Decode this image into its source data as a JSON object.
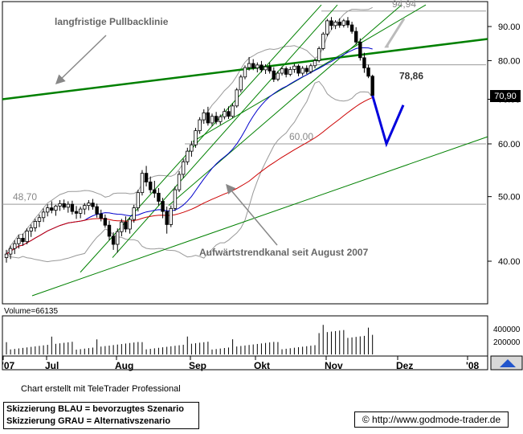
{
  "chart_data": {
    "type": "candlestick",
    "title": "",
    "xlabel": "",
    "ylabel": "",
    "ylim": [
      35,
      98
    ],
    "y_ticks": [
      40,
      50,
      60,
      70,
      80,
      90
    ],
    "x_ticks": [
      "'07",
      "Jul",
      "Aug",
      "Sep",
      "Okt",
      "Nov",
      "Dez",
      "'08"
    ],
    "current_price": "70,90",
    "price_levels": [
      {
        "label": "94,94",
        "value": 94.94
      },
      {
        "label": "78,86",
        "value": 78.86
      },
      {
        "label": "60,00",
        "value": 60.0
      },
      {
        "label": "48,70",
        "value": 48.7
      }
    ],
    "annotations": [
      {
        "text": "langfristige Pullbacklinie"
      },
      {
        "text": "Aufwärtstrendkanal seit August 2007"
      }
    ],
    "volume": {
      "label": "Volume=66135",
      "ticks": [
        "400000",
        "200000"
      ]
    },
    "colors": {
      "candle_body": "#000000",
      "trend_line": "#008000",
      "pullback_line": "#008000",
      "short_ma": "#0000cc",
      "long_ma": "#cc0000",
      "bollinger": "#999999",
      "scenario_blue": "#0000dd",
      "scenario_grey": "#bbbbbb"
    },
    "ohlc": [
      [
        40.5,
        41.6,
        39.8,
        41.0
      ],
      [
        41.0,
        42.2,
        40.3,
        41.8
      ],
      [
        41.8,
        43.0,
        41.0,
        42.5
      ],
      [
        42.5,
        43.8,
        41.8,
        43.3
      ],
      [
        43.3,
        44.0,
        42.2,
        42.8
      ],
      [
        42.8,
        44.8,
        42.4,
        44.4
      ],
      [
        44.4,
        45.4,
        43.5,
        44.9
      ],
      [
        44.9,
        46.3,
        44.3,
        45.9
      ],
      [
        45.9,
        47.0,
        45.0,
        46.5
      ],
      [
        46.5,
        48.0,
        45.8,
        47.4
      ],
      [
        47.4,
        48.7,
        46.7,
        48.1
      ],
      [
        48.1,
        49.2,
        47.2,
        47.7
      ],
      [
        47.7,
        48.6,
        46.8,
        48.4
      ],
      [
        48.4,
        49.4,
        47.6,
        48.8
      ],
      [
        48.8,
        49.5,
        47.8,
        48.2
      ],
      [
        48.2,
        49.2,
        47.3,
        48.7
      ],
      [
        48.7,
        49.3,
        47.0,
        47.5
      ],
      [
        47.5,
        48.4,
        46.3,
        47.2
      ],
      [
        47.2,
        48.3,
        46.4,
        47.9
      ],
      [
        47.9,
        48.9,
        47.0,
        48.5
      ],
      [
        48.5,
        49.4,
        47.7,
        48.9
      ],
      [
        48.9,
        49.6,
        47.8,
        48.3
      ],
      [
        48.3,
        48.8,
        46.5,
        47.1
      ],
      [
        47.1,
        47.8,
        45.9,
        46.4
      ],
      [
        46.4,
        47.0,
        44.9,
        45.3
      ],
      [
        45.3,
        46.0,
        43.0,
        43.6
      ],
      [
        43.6,
        44.2,
        41.6,
        42.4
      ],
      [
        42.4,
        44.8,
        41.2,
        44.3
      ],
      [
        44.3,
        46.3,
        43.6,
        45.8
      ],
      [
        45.8,
        46.7,
        44.2,
        44.7
      ],
      [
        44.7,
        46.5,
        44.0,
        46.2
      ],
      [
        46.2,
        48.6,
        45.7,
        48.1
      ],
      [
        48.1,
        51.2,
        47.5,
        50.7
      ],
      [
        50.7,
        54.8,
        50.2,
        54.2
      ],
      [
        54.2,
        55.6,
        51.8,
        52.6
      ],
      [
        52.6,
        53.6,
        50.6,
        51.2
      ],
      [
        51.2,
        52.8,
        49.8,
        50.6
      ],
      [
        50.6,
        51.5,
        48.5,
        49.2
      ],
      [
        49.2,
        49.8,
        46.4,
        47.5
      ],
      [
        47.5,
        48.3,
        44.0,
        45.4
      ],
      [
        45.4,
        48.5,
        45.0,
        48.0
      ],
      [
        48.0,
        51.8,
        47.6,
        51.2
      ],
      [
        51.2,
        54.6,
        50.8,
        54.0
      ],
      [
        54.0,
        57.0,
        53.3,
        56.4
      ],
      [
        56.4,
        59.2,
        55.8,
        58.5
      ],
      [
        58.5,
        60.6,
        57.4,
        59.8
      ],
      [
        59.8,
        63.4,
        59.2,
        62.8
      ],
      [
        62.8,
        65.8,
        62.1,
        65.2
      ],
      [
        65.2,
        67.6,
        64.3,
        66.8
      ],
      [
        66.8,
        68.2,
        63.9,
        64.5
      ],
      [
        64.5,
        66.6,
        63.8,
        66.0
      ],
      [
        66.0,
        67.0,
        64.2,
        64.8
      ],
      [
        64.8,
        66.4,
        64.1,
        65.9
      ],
      [
        65.9,
        67.8,
        65.3,
        67.1
      ],
      [
        67.1,
        68.3,
        65.4,
        66.0
      ],
      [
        66.0,
        69.0,
        65.6,
        68.4
      ],
      [
        68.4,
        72.8,
        68.0,
        72.3
      ],
      [
        72.3,
        76.2,
        71.7,
        75.6
      ],
      [
        75.6,
        78.7,
        75.0,
        78.1
      ],
      [
        78.1,
        81.0,
        77.3,
        79.2
      ],
      [
        79.2,
        80.4,
        77.4,
        78.0
      ],
      [
        78.0,
        79.5,
        76.8,
        78.8
      ],
      [
        78.8,
        79.9,
        76.8,
        77.5
      ],
      [
        77.5,
        79.0,
        76.4,
        78.3
      ],
      [
        78.3,
        79.5,
        76.5,
        77.2
      ],
      [
        77.2,
        78.2,
        74.3,
        75.0
      ],
      [
        75.0,
        77.2,
        74.5,
        76.6
      ],
      [
        76.6,
        78.4,
        76.0,
        77.8
      ],
      [
        77.8,
        78.4,
        75.5,
        76.3
      ],
      [
        76.3,
        78.3,
        75.8,
        77.6
      ],
      [
        77.6,
        79.1,
        76.7,
        78.5
      ],
      [
        78.5,
        79.0,
        75.8,
        76.6
      ],
      [
        76.6,
        78.5,
        75.9,
        77.9
      ],
      [
        77.9,
        78.7,
        76.4,
        77.0
      ],
      [
        77.0,
        79.2,
        76.5,
        78.6
      ],
      [
        78.6,
        80.6,
        77.9,
        80.0
      ],
      [
        80.0,
        84.0,
        79.5,
        83.4
      ],
      [
        83.4,
        88.3,
        82.9,
        87.7
      ],
      [
        87.7,
        92.4,
        87.0,
        91.8
      ],
      [
        91.8,
        93.0,
        89.0,
        90.3
      ],
      [
        90.3,
        92.0,
        89.2,
        91.4
      ],
      [
        91.4,
        92.6,
        89.6,
        90.4
      ],
      [
        90.4,
        92.4,
        89.7,
        91.8
      ],
      [
        91.8,
        93.0,
        89.6,
        90.5
      ],
      [
        90.5,
        91.5,
        87.8,
        88.5
      ],
      [
        88.5,
        89.8,
        84.5,
        85.3
      ],
      [
        85.3,
        86.4,
        80.0,
        80.8
      ],
      [
        80.8,
        82.2,
        76.7,
        78.0
      ],
      [
        78.0,
        78.9,
        75.3,
        75.8
      ],
      [
        75.8,
        76.2,
        70.6,
        70.9
      ]
    ]
  },
  "labels": {
    "pullback_annotation": "langfristige Pullbacklinie",
    "channel_annotation": "Aufwärtstrendkanal seit August 2007"
  },
  "footer": {
    "credit": "Chart erstellt mit TeleTrader Professional",
    "legend_blue": "Skizzierung BLAU = bevorzugtes Szenario",
    "legend_grey": "Skizzierung GRAU = Alternativszenario",
    "copyright_symbol": "©",
    "url": "http://www.godmode-trader.de"
  }
}
